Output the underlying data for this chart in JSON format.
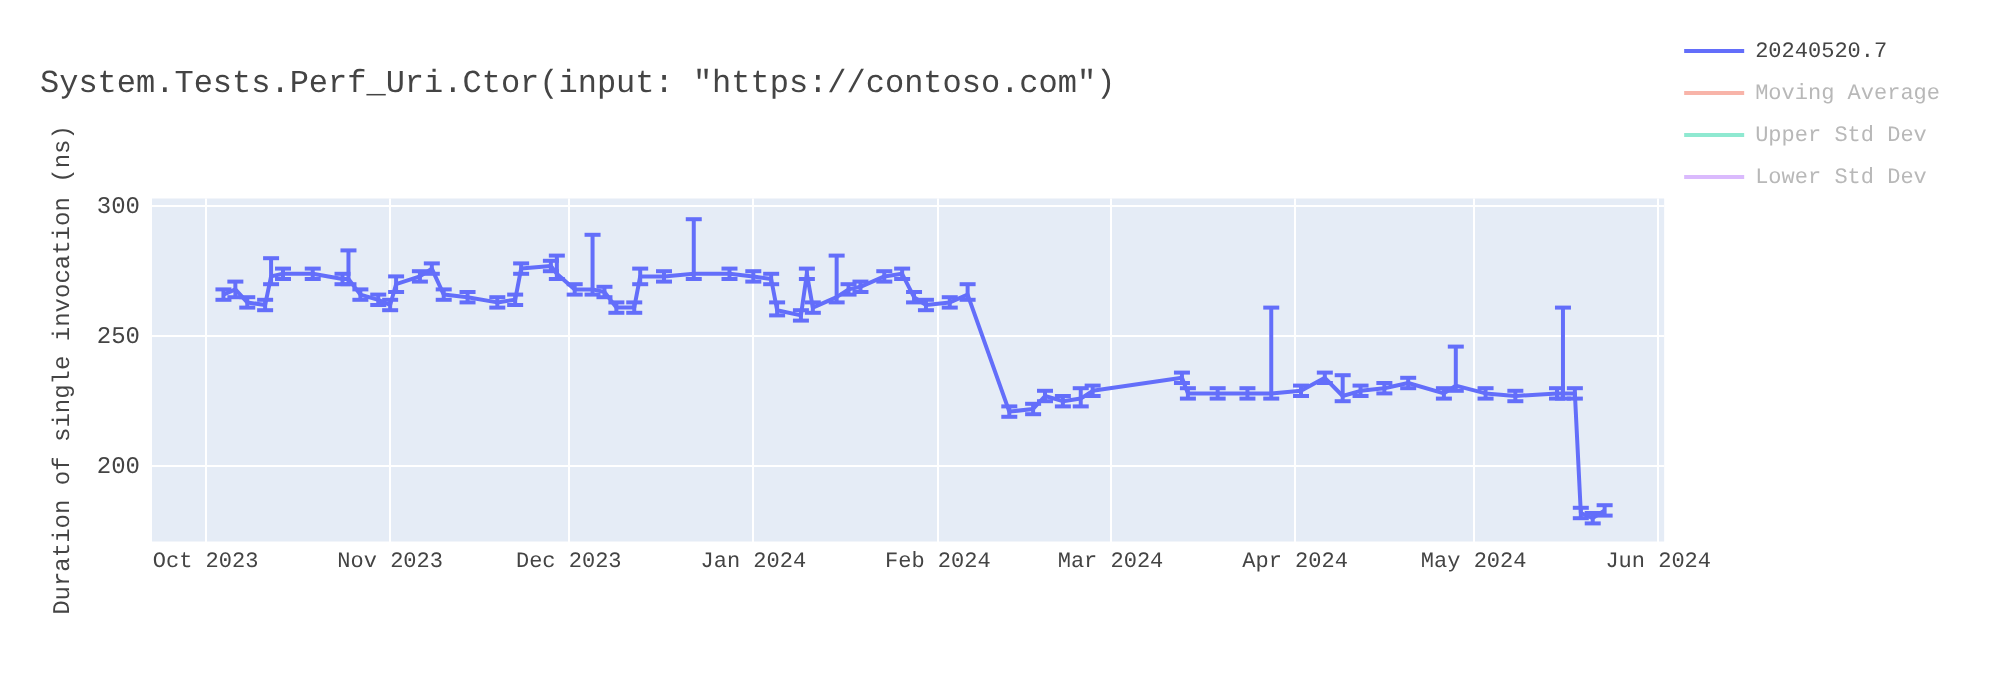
{
  "chart_data": {
    "type": "line",
    "title": "System.Tests.Perf_Uri.Ctor(input: \"https://contoso.com\")",
    "ylabel": "Duration of single invocation (ns)",
    "x": [
      "2023-10-04",
      "2023-10-06",
      "2023-10-08",
      "2023-10-11",
      "2023-10-12",
      "2023-10-14",
      "2023-10-19",
      "2023-10-24",
      "2023-10-25",
      "2023-10-27",
      "2023-10-30",
      "2023-11-01",
      "2023-11-02",
      "2023-11-06",
      "2023-11-08",
      "2023-11-10",
      "2023-11-14",
      "2023-11-19",
      "2023-11-22",
      "2023-11-23",
      "2023-11-28",
      "2023-11-29",
      "2023-12-02",
      "2023-12-05",
      "2023-12-07",
      "2023-12-09",
      "2023-12-12",
      "2023-12-13",
      "2023-12-17",
      "2023-12-22",
      "2023-12-28",
      "2024-01-01",
      "2024-01-04",
      "2024-01-05",
      "2024-01-09",
      "2024-01-10",
      "2024-01-11",
      "2024-01-15",
      "2024-01-17",
      "2024-01-19",
      "2024-01-23",
      "2024-01-26",
      "2024-01-28",
      "2024-01-30",
      "2024-02-03",
      "2024-02-06",
      "2024-02-13",
      "2024-02-17",
      "2024-02-19",
      "2024-02-22",
      "2024-02-25",
      "2024-02-27",
      "2024-03-13",
      "2024-03-14",
      "2024-03-19",
      "2024-03-24",
      "2024-03-28",
      "2024-04-02",
      "2024-04-06",
      "2024-04-09",
      "2024-04-12",
      "2024-04-16",
      "2024-04-20",
      "2024-04-26",
      "2024-04-28",
      "2024-05-03",
      "2024-05-08",
      "2024-05-15",
      "2024-05-16",
      "2024-05-18",
      "2024-05-19",
      "2024-05-21",
      "2024-05-23"
    ],
    "series": [
      {
        "name": "20240520.7",
        "color": "#636efa",
        "values": [
          266,
          268,
          263,
          262,
          273,
          274,
          274,
          272,
          272,
          266,
          264,
          262,
          270,
          273,
          276,
          266,
          265,
          263,
          264,
          276,
          277,
          274,
          268,
          268,
          267,
          261,
          261,
          273,
          273,
          274,
          274,
          273,
          272,
          260,
          258,
          274,
          261,
          265,
          268,
          269,
          273,
          274,
          265,
          262,
          263,
          266,
          221,
          222,
          227,
          225,
          226,
          229,
          234,
          228,
          228,
          228,
          228,
          229,
          234,
          227,
          229,
          230,
          232,
          228,
          231,
          228,
          227,
          228,
          228,
          228,
          182,
          180,
          183
        ],
        "errors": [
          2,
          3,
          2,
          2,
          [
            270,
            280
          ],
          2,
          2,
          2,
          [
            270,
            283
          ],
          2,
          2,
          2,
          3,
          2,
          2,
          2,
          2,
          2,
          2,
          2,
          2,
          [
            272,
            281
          ],
          2,
          [
            266,
            289
          ],
          2,
          2,
          2,
          3,
          2,
          [
            272,
            295
          ],
          2,
          2,
          2,
          [
            258,
            263
          ],
          2,
          2,
          2,
          [
            263,
            281
          ],
          2,
          2,
          2,
          2,
          2,
          2,
          2,
          [
            264,
            270
          ],
          2,
          2,
          2,
          2,
          [
            223,
            230
          ],
          2,
          2,
          2,
          2,
          2,
          [
            226,
            261
          ],
          2,
          2,
          [
            225,
            235
          ],
          2,
          2,
          2,
          2,
          [
            229,
            246
          ],
          2,
          2,
          2,
          [
            226,
            261
          ],
          2,
          2,
          2,
          2
        ]
      },
      {
        "name": "Moving Average",
        "color": "#ef553b",
        "values": [
          null,
          null,
          null,
          null,
          null,
          null,
          null,
          null,
          null,
          null,
          null,
          null,
          null,
          null,
          null,
          null,
          null,
          null,
          null,
          null,
          null,
          null,
          null,
          null,
          null,
          null,
          null,
          null,
          null,
          null,
          null,
          null,
          null,
          null,
          null,
          null,
          null,
          null,
          null,
          null,
          null,
          null,
          null,
          null,
          null,
          null,
          null,
          null,
          null,
          null,
          null,
          null,
          null,
          null,
          null,
          null,
          null,
          null,
          null,
          null,
          null,
          null,
          null,
          null,
          null,
          null,
          null,
          null,
          null,
          null,
          null,
          null,
          null
        ]
      },
      {
        "name": "Upper Std Dev",
        "color": "#00cc96",
        "values": [
          null,
          null,
          null,
          null,
          null,
          null,
          null,
          null,
          null,
          null,
          null,
          null,
          null,
          null,
          null,
          null,
          null,
          null,
          null,
          null,
          null,
          null,
          null,
          null,
          null,
          null,
          null,
          null,
          null,
          null,
          null,
          null,
          null,
          null,
          null,
          null,
          null,
          null,
          null,
          null,
          null,
          null,
          null,
          null,
          null,
          null,
          null,
          null,
          null,
          null,
          null,
          null,
          null,
          null,
          null,
          null,
          null,
          null,
          null,
          null,
          null,
          null,
          null,
          null,
          null,
          null,
          null,
          null,
          null,
          null,
          null,
          null,
          null
        ]
      },
      {
        "name": "Lower Std Dev",
        "color": "#ab63fa",
        "values": [
          null,
          null,
          null,
          null,
          null,
          null,
          null,
          null,
          null,
          null,
          null,
          null,
          null,
          null,
          null,
          null,
          null,
          null,
          null,
          null,
          null,
          null,
          null,
          null,
          null,
          null,
          null,
          null,
          null,
          null,
          null,
          null,
          null,
          null,
          null,
          null,
          null,
          null,
          null,
          null,
          null,
          null,
          null,
          null,
          null,
          null,
          null,
          null,
          null,
          null,
          null,
          null,
          null,
          null,
          null,
          null,
          null,
          null,
          null,
          null,
          null,
          null,
          null,
          null,
          null,
          null,
          null,
          null,
          null,
          null,
          null,
          null,
          null
        ]
      }
    ],
    "xlim": [
      "2023-09-22",
      "2024-06-02"
    ],
    "xticks": [
      {
        "value": "2023-10-01",
        "label": "Oct 2023"
      },
      {
        "value": "2023-11-01",
        "label": "Nov 2023"
      },
      {
        "value": "2023-12-01",
        "label": "Dec 2023"
      },
      {
        "value": "2024-01-01",
        "label": "Jan 2024"
      },
      {
        "value": "2024-02-01",
        "label": "Feb 2024"
      },
      {
        "value": "2024-03-01",
        "label": "Mar 2024"
      },
      {
        "value": "2024-04-01",
        "label": "Apr 2024"
      },
      {
        "value": "2024-05-01",
        "label": "May 2024"
      },
      {
        "value": "2024-06-01",
        "label": "Jun 2024"
      }
    ],
    "ylim": [
      171,
      303
    ],
    "yticks": [
      200,
      250,
      300
    ],
    "grid": true,
    "legend": "top right"
  }
}
